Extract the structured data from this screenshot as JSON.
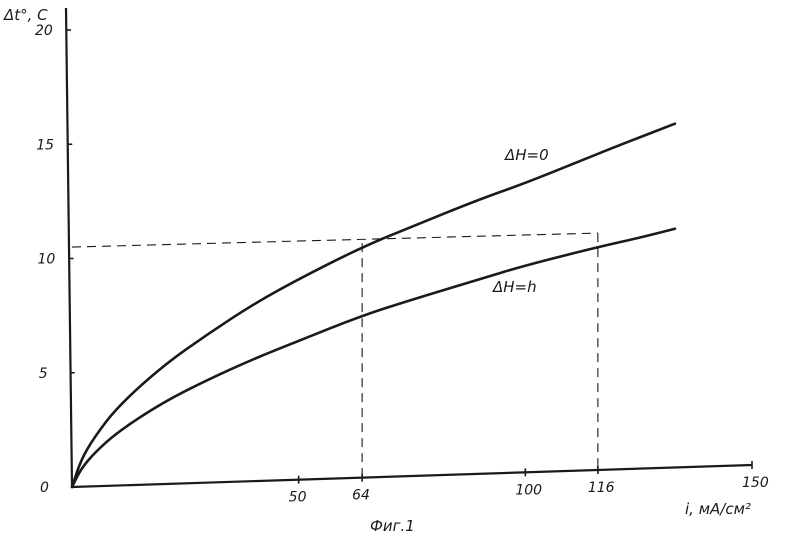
{
  "chart_data": {
    "type": "line",
    "ylabel": "Δt°, C",
    "xlabel": "i, мА/см²",
    "caption": "Фиг.1",
    "xlim": [
      0,
      150
    ],
    "ylim": [
      0,
      20
    ],
    "yticks": [
      0,
      5,
      10,
      15,
      20
    ],
    "xtick_labels": [
      {
        "value": 50,
        "label": "50"
      },
      {
        "value": 64,
        "label": "64"
      },
      {
        "value": 100,
        "label": "100"
      },
      {
        "value": 116,
        "label": "116"
      },
      {
        "value": 150,
        "label": "150"
      }
    ],
    "series": [
      {
        "name": "ΔH=0",
        "x": [
          0,
          2,
          5,
          10,
          20,
          30,
          40,
          50,
          64,
          75,
          90,
          100,
          110,
          120,
          133
        ],
        "y": [
          0,
          1.2,
          2.2,
          3.5,
          5.3,
          6.7,
          8.0,
          9.1,
          10.5,
          11.4,
          12.6,
          13.3,
          14.1,
          14.9,
          15.9
        ]
      },
      {
        "name": "ΔH=h",
        "x": [
          0,
          2,
          5,
          10,
          20,
          30,
          40,
          50,
          64,
          75,
          90,
          100,
          116,
          125,
          133
        ],
        "y": [
          0,
          0.8,
          1.5,
          2.4,
          3.7,
          4.7,
          5.6,
          6.4,
          7.5,
          8.2,
          9.1,
          9.7,
          10.5,
          10.9,
          11.3
        ]
      }
    ],
    "reference_lines": [
      {
        "type": "horizontal",
        "y": 10.5,
        "x_to": 116
      },
      {
        "type": "vertical",
        "x": 64,
        "y_to": 10.5
      },
      {
        "type": "vertical",
        "x": 116,
        "y_to": 10.5
      }
    ]
  }
}
